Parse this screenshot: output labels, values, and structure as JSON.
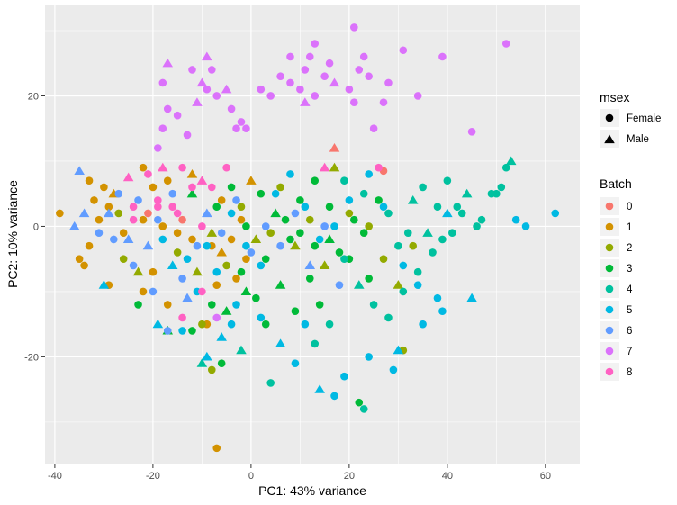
{
  "chart_data": {
    "type": "scatter",
    "xlabel": "PC1: 43% variance",
    "ylabel": "PC2: 10% variance",
    "xlim": [
      -42,
      67
    ],
    "ylim": [
      -36.5,
      34
    ],
    "x_ticks": [
      -40,
      -20,
      0,
      20,
      40,
      60
    ],
    "y_ticks": [
      -20,
      0,
      20
    ],
    "grid": true,
    "shape_legend": {
      "title": "msex",
      "entries": [
        {
          "label": "Female",
          "shape": "circle"
        },
        {
          "label": "Male",
          "shape": "triangle"
        }
      ]
    },
    "color_legend": {
      "title": "Batch",
      "entries": [
        {
          "label": "0",
          "color": "#F8766D"
        },
        {
          "label": "1",
          "color": "#D39200"
        },
        {
          "label": "2",
          "color": "#93AA00"
        },
        {
          "label": "3",
          "color": "#00BA38"
        },
        {
          "label": "4",
          "color": "#00C19F"
        },
        {
          "label": "5",
          "color": "#00B9E3"
        },
        {
          "label": "6",
          "color": "#619CFF"
        },
        {
          "label": "7",
          "color": "#DB72FB"
        },
        {
          "label": "8",
          "color": "#FF61C3"
        }
      ]
    },
    "points": [
      [
        -39,
        2,
        "1",
        "F"
      ],
      [
        -35,
        8.5,
        "6",
        "M"
      ],
      [
        -34,
        2,
        "6",
        "M"
      ],
      [
        -36,
        0,
        "6",
        "M"
      ],
      [
        -33,
        7,
        "1",
        "F"
      ],
      [
        -32,
        4,
        "1",
        "F"
      ],
      [
        -30,
        6,
        "1",
        "F"
      ],
      [
        -29,
        3,
        "1",
        "F"
      ],
      [
        -31,
        1,
        "1",
        "F"
      ],
      [
        -28,
        -2,
        "6",
        "F"
      ],
      [
        -33,
        -3,
        "1",
        "F"
      ],
      [
        -35,
        -5,
        "1",
        "F"
      ],
      [
        -34,
        -6,
        "1",
        "F"
      ],
      [
        -29,
        -9,
        "1",
        "F"
      ],
      [
        -30,
        -9,
        "5",
        "M"
      ],
      [
        -28,
        5,
        "1",
        "M"
      ],
      [
        -27,
        2,
        "2",
        "F"
      ],
      [
        -26,
        -1,
        "1",
        "F"
      ],
      [
        -25,
        7.5,
        "8",
        "M"
      ],
      [
        -24,
        3,
        "8",
        "F"
      ],
      [
        -22,
        9,
        "1",
        "F"
      ],
      [
        -21,
        8,
        "8",
        "F"
      ],
      [
        -20,
        6,
        "1",
        "F"
      ],
      [
        -19,
        4,
        "8",
        "F"
      ],
      [
        -18,
        9,
        "8",
        "M"
      ],
      [
        -17,
        7,
        "1",
        "F"
      ],
      [
        -16,
        3,
        "8",
        "F"
      ],
      [
        -14,
        9,
        "8",
        "F"
      ],
      [
        -12,
        8,
        "1",
        "M"
      ],
      [
        -10,
        7,
        "8",
        "M"
      ],
      [
        -8,
        6,
        "8",
        "F"
      ],
      [
        -6,
        4,
        "1",
        "F"
      ],
      [
        -5,
        9,
        "8",
        "F"
      ],
      [
        -22,
        1,
        "1",
        "F"
      ],
      [
        -18,
        0,
        "1",
        "F"
      ],
      [
        -15,
        -1,
        "1",
        "F"
      ],
      [
        -12,
        -2,
        "1",
        "F"
      ],
      [
        -10,
        0,
        "8",
        "F"
      ],
      [
        -8,
        -3,
        "1",
        "F"
      ],
      [
        -6,
        -4,
        "1",
        "M"
      ],
      [
        -4,
        -2,
        "1",
        "F"
      ],
      [
        -2,
        1,
        "1",
        "F"
      ],
      [
        0,
        7,
        "1",
        "M"
      ],
      [
        -1,
        -5,
        "1",
        "F"
      ],
      [
        -3,
        -8,
        "1",
        "F"
      ],
      [
        -7,
        -9,
        "1",
        "F"
      ],
      [
        -20,
        -7,
        "1",
        "F"
      ],
      [
        -22,
        -10,
        "1",
        "F"
      ],
      [
        -17,
        -12,
        "1",
        "F"
      ],
      [
        -9,
        -15,
        "1",
        "F"
      ],
      [
        -7,
        -34,
        "1",
        "F"
      ],
      [
        17,
        12,
        "0",
        "M"
      ],
      [
        27,
        8.5,
        "0",
        "F"
      ],
      [
        -21,
        2,
        "0",
        "F"
      ],
      [
        -14,
        1,
        "0",
        "F"
      ],
      [
        -26,
        -5,
        "2",
        "F"
      ],
      [
        -23,
        -7,
        "2",
        "M"
      ],
      [
        -15,
        -4,
        "2",
        "F"
      ],
      [
        -11,
        -7,
        "2",
        "M"
      ],
      [
        -8,
        -1,
        "2",
        "M"
      ],
      [
        -5,
        -6,
        "2",
        "F"
      ],
      [
        -2,
        3,
        "2",
        "F"
      ],
      [
        1,
        -2,
        "2",
        "M"
      ],
      [
        4,
        -1,
        "2",
        "F"
      ],
      [
        6,
        6,
        "2",
        "F"
      ],
      [
        9,
        -3,
        "2",
        "M"
      ],
      [
        12,
        1,
        "2",
        "F"
      ],
      [
        15,
        -6,
        "2",
        "M"
      ],
      [
        17,
        9,
        "2",
        "M"
      ],
      [
        20,
        2,
        "2",
        "F"
      ],
      [
        24,
        0,
        "2",
        "F"
      ],
      [
        27,
        -5,
        "2",
        "F"
      ],
      [
        30,
        -9,
        "2",
        "M"
      ],
      [
        33,
        -3,
        "2",
        "F"
      ],
      [
        -10,
        -15,
        "2",
        "F"
      ],
      [
        -8,
        -22,
        "2",
        "F"
      ],
      [
        31,
        -19,
        "2",
        "F"
      ],
      [
        -12,
        5,
        "3",
        "M"
      ],
      [
        -7,
        3,
        "3",
        "F"
      ],
      [
        -4,
        6,
        "3",
        "F"
      ],
      [
        -1,
        0,
        "3",
        "F"
      ],
      [
        2,
        5,
        "3",
        "F"
      ],
      [
        5,
        2,
        "3",
        "M"
      ],
      [
        8,
        -2,
        "3",
        "F"
      ],
      [
        10,
        4,
        "3",
        "F"
      ],
      [
        13,
        7,
        "3",
        "F"
      ],
      [
        16,
        3,
        "3",
        "F"
      ],
      [
        18,
        -4,
        "3",
        "F"
      ],
      [
        21,
        1,
        "3",
        "F"
      ],
      [
        23,
        -1,
        "3",
        "F"
      ],
      [
        26,
        4,
        "3",
        "F"
      ],
      [
        -2,
        -7,
        "3",
        "F"
      ],
      [
        1,
        -11,
        "3",
        "F"
      ],
      [
        3,
        -15,
        "3",
        "F"
      ],
      [
        6,
        -9,
        "3",
        "M"
      ],
      [
        9,
        -13,
        "3",
        "F"
      ],
      [
        12,
        -8,
        "3",
        "F"
      ],
      [
        14,
        -12,
        "3",
        "F"
      ],
      [
        -5,
        -13,
        "3",
        "M"
      ],
      [
        -8,
        -12,
        "3",
        "F"
      ],
      [
        -17,
        -16,
        "3",
        "M"
      ],
      [
        -12,
        -16,
        "3",
        "F"
      ],
      [
        -23,
        -12,
        "3",
        "F"
      ],
      [
        -6,
        -21,
        "3",
        "F"
      ],
      [
        -1,
        -10,
        "3",
        "M"
      ],
      [
        22,
        -27,
        "3",
        "F"
      ],
      [
        7,
        1,
        "3",
        "F"
      ],
      [
        3,
        -5,
        "3",
        "F"
      ],
      [
        10,
        -1,
        "3",
        "F"
      ],
      [
        16,
        -2,
        "3",
        "M"
      ],
      [
        20,
        -5,
        "3",
        "F"
      ],
      [
        24,
        -8,
        "3",
        "F"
      ],
      [
        13,
        -3,
        "3",
        "F"
      ],
      [
        19,
        7,
        "4",
        "F"
      ],
      [
        23,
        5,
        "4",
        "F"
      ],
      [
        28,
        2,
        "4",
        "F"
      ],
      [
        32,
        -1,
        "4",
        "F"
      ],
      [
        35,
        6,
        "4",
        "F"
      ],
      [
        38,
        3,
        "4",
        "F"
      ],
      [
        40,
        7,
        "4",
        "F"
      ],
      [
        43,
        2,
        "4",
        "F"
      ],
      [
        46,
        0,
        "4",
        "F"
      ],
      [
        49,
        5,
        "4",
        "F"
      ],
      [
        51,
        6,
        "4",
        "F"
      ],
      [
        52,
        9,
        "4",
        "F"
      ],
      [
        53,
        10,
        "4",
        "M"
      ],
      [
        44,
        5,
        "4",
        "M"
      ],
      [
        41,
        -1,
        "4",
        "F"
      ],
      [
        37,
        -4,
        "4",
        "F"
      ],
      [
        34,
        -7,
        "4",
        "F"
      ],
      [
        31,
        -10,
        "4",
        "F"
      ],
      [
        28,
        -14,
        "4",
        "F"
      ],
      [
        25,
        -12,
        "4",
        "F"
      ],
      [
        22,
        -9,
        "4",
        "M"
      ],
      [
        19,
        -5,
        "4",
        "F"
      ],
      [
        16,
        -15,
        "4",
        "F"
      ],
      [
        13,
        -18,
        "4",
        "F"
      ],
      [
        23,
        -28,
        "4",
        "F"
      ],
      [
        -2,
        -19,
        "4",
        "M"
      ],
      [
        4,
        -24,
        "4",
        "F"
      ],
      [
        -10,
        -21,
        "4",
        "M"
      ],
      [
        36,
        -1,
        "4",
        "M"
      ],
      [
        30,
        -3,
        "4",
        "F"
      ],
      [
        33,
        4,
        "4",
        "M"
      ],
      [
        39,
        -2,
        "4",
        "F"
      ],
      [
        42,
        3,
        "4",
        "F"
      ],
      [
        47,
        1,
        "4",
        "F"
      ],
      [
        50,
        5,
        "4",
        "F"
      ],
      [
        62,
        2,
        "5",
        "F"
      ],
      [
        54,
        1,
        "5",
        "F"
      ],
      [
        56,
        0,
        "5",
        "F"
      ],
      [
        45,
        -11,
        "5",
        "M"
      ],
      [
        39,
        -13,
        "5",
        "F"
      ],
      [
        35,
        -15,
        "5",
        "F"
      ],
      [
        30,
        -19,
        "5",
        "M"
      ],
      [
        29,
        -22,
        "5",
        "F"
      ],
      [
        24,
        -20,
        "5",
        "F"
      ],
      [
        19,
        -23,
        "5",
        "F"
      ],
      [
        17,
        -26,
        "5",
        "F"
      ],
      [
        14,
        -25,
        "5",
        "M"
      ],
      [
        9,
        -21,
        "5",
        "F"
      ],
      [
        6,
        -18,
        "5",
        "M"
      ],
      [
        2,
        -14,
        "5",
        "F"
      ],
      [
        -3,
        -12,
        "5",
        "F"
      ],
      [
        -6,
        -17,
        "5",
        "M"
      ],
      [
        -9,
        -20,
        "5",
        "M"
      ],
      [
        -14,
        -16,
        "5",
        "F"
      ],
      [
        -19,
        -15,
        "5",
        "M"
      ],
      [
        -4,
        -15,
        "5",
        "F"
      ],
      [
        11,
        -15,
        "5",
        "F"
      ],
      [
        -18,
        -2,
        "5",
        "F"
      ],
      [
        -16,
        -6,
        "5",
        "M"
      ],
      [
        -13,
        -5,
        "5",
        "F"
      ],
      [
        -11,
        -10,
        "5",
        "F"
      ],
      [
        -9,
        -3,
        "5",
        "F"
      ],
      [
        -7,
        -7,
        "5",
        "F"
      ],
      [
        -4,
        2,
        "5",
        "F"
      ],
      [
        -1,
        -3,
        "5",
        "F"
      ],
      [
        2,
        -6,
        "5",
        "F"
      ],
      [
        5,
        5,
        "5",
        "F"
      ],
      [
        8,
        8,
        "5",
        "F"
      ],
      [
        11,
        3,
        "5",
        "F"
      ],
      [
        14,
        -2,
        "5",
        "F"
      ],
      [
        17,
        0,
        "5",
        "F"
      ],
      [
        20,
        4,
        "5",
        "F"
      ],
      [
        24,
        8,
        "5",
        "F"
      ],
      [
        27,
        3,
        "5",
        "F"
      ],
      [
        31,
        -6,
        "5",
        "F"
      ],
      [
        34,
        -9,
        "5",
        "F"
      ],
      [
        38,
        -11,
        "5",
        "F"
      ],
      [
        40,
        2,
        "5",
        "M"
      ],
      [
        -23,
        4,
        "6",
        "F"
      ],
      [
        -21,
        -3,
        "6",
        "M"
      ],
      [
        -19,
        1,
        "6",
        "F"
      ],
      [
        -16,
        5,
        "6",
        "F"
      ],
      [
        -14,
        -8,
        "6",
        "F"
      ],
      [
        -11,
        -3,
        "6",
        "F"
      ],
      [
        -9,
        2,
        "6",
        "M"
      ],
      [
        -6,
        -1,
        "6",
        "F"
      ],
      [
        -3,
        4,
        "6",
        "F"
      ],
      [
        0,
        -4,
        "6",
        "F"
      ],
      [
        3,
        0,
        "6",
        "F"
      ],
      [
        6,
        -3,
        "6",
        "F"
      ],
      [
        9,
        2,
        "6",
        "F"
      ],
      [
        12,
        -6,
        "6",
        "M"
      ],
      [
        15,
        0,
        "6",
        "F"
      ],
      [
        18,
        -9,
        "6",
        "F"
      ],
      [
        -17,
        -16,
        "6",
        "F"
      ],
      [
        -20,
        -10,
        "6",
        "F"
      ],
      [
        -24,
        -6,
        "6",
        "F"
      ],
      [
        -13,
        -11,
        "6",
        "M"
      ],
      [
        -25,
        -2,
        "6",
        "M"
      ],
      [
        -27,
        5,
        "6",
        "F"
      ],
      [
        -29,
        2,
        "6",
        "M"
      ],
      [
        -31,
        -1,
        "6",
        "F"
      ],
      [
        -12,
        24,
        "7",
        "F"
      ],
      [
        -18,
        22,
        "7",
        "F"
      ],
      [
        -17,
        18,
        "7",
        "F"
      ],
      [
        -18,
        15,
        "7",
        "F"
      ],
      [
        -19,
        12,
        "7",
        "F"
      ],
      [
        -17,
        25,
        "7",
        "M"
      ],
      [
        -15,
        17,
        "7",
        "F"
      ],
      [
        -13,
        14,
        "7",
        "F"
      ],
      [
        -11,
        19,
        "7",
        "M"
      ],
      [
        -10,
        22,
        "7",
        "M"
      ],
      [
        -9,
        26,
        "7",
        "M"
      ],
      [
        -8,
        24,
        "7",
        "F"
      ],
      [
        -9,
        21,
        "7",
        "F"
      ],
      [
        -7,
        20,
        "7",
        "F"
      ],
      [
        -5,
        21,
        "7",
        "M"
      ],
      [
        -4,
        18,
        "7",
        "F"
      ],
      [
        -3,
        15,
        "7",
        "F"
      ],
      [
        -2,
        16,
        "7",
        "F"
      ],
      [
        -1,
        15,
        "7",
        "F"
      ],
      [
        2,
        21,
        "7",
        "F"
      ],
      [
        4,
        20,
        "7",
        "F"
      ],
      [
        6,
        23,
        "7",
        "F"
      ],
      [
        8,
        22,
        "7",
        "F"
      ],
      [
        8,
        26,
        "7",
        "F"
      ],
      [
        10,
        21,
        "7",
        "F"
      ],
      [
        11,
        24,
        "7",
        "F"
      ],
      [
        11,
        19,
        "7",
        "M"
      ],
      [
        13,
        20,
        "7",
        "F"
      ],
      [
        12,
        26,
        "7",
        "F"
      ],
      [
        13,
        28,
        "7",
        "F"
      ],
      [
        15,
        23,
        "7",
        "F"
      ],
      [
        16,
        25,
        "7",
        "F"
      ],
      [
        17,
        22,
        "7",
        "M"
      ],
      [
        20,
        21,
        "7",
        "F"
      ],
      [
        21,
        19,
        "7",
        "F"
      ],
      [
        22,
        24,
        "7",
        "F"
      ],
      [
        23,
        26,
        "7",
        "F"
      ],
      [
        21,
        30.5,
        "7",
        "F"
      ],
      [
        24,
        23,
        "7",
        "F"
      ],
      [
        27,
        19,
        "7",
        "F"
      ],
      [
        25,
        15,
        "7",
        "F"
      ],
      [
        28,
        22,
        "7",
        "F"
      ],
      [
        31,
        27,
        "7",
        "F"
      ],
      [
        34,
        20,
        "7",
        "F"
      ],
      [
        39,
        26,
        "7",
        "F"
      ],
      [
        45,
        14.5,
        "7",
        "F"
      ],
      [
        52,
        28,
        "7",
        "F"
      ],
      [
        -7,
        -14,
        "7",
        "F"
      ],
      [
        -14,
        -14,
        "8",
        "F"
      ],
      [
        -10,
        -10,
        "8",
        "F"
      ],
      [
        -15,
        2,
        "8",
        "F"
      ],
      [
        -12,
        6,
        "8",
        "F"
      ],
      [
        -19,
        3,
        "8",
        "F"
      ],
      [
        -24,
        1,
        "8",
        "F"
      ],
      [
        26,
        9,
        "8",
        "F"
      ],
      [
        15,
        9,
        "8",
        "M"
      ]
    ]
  }
}
